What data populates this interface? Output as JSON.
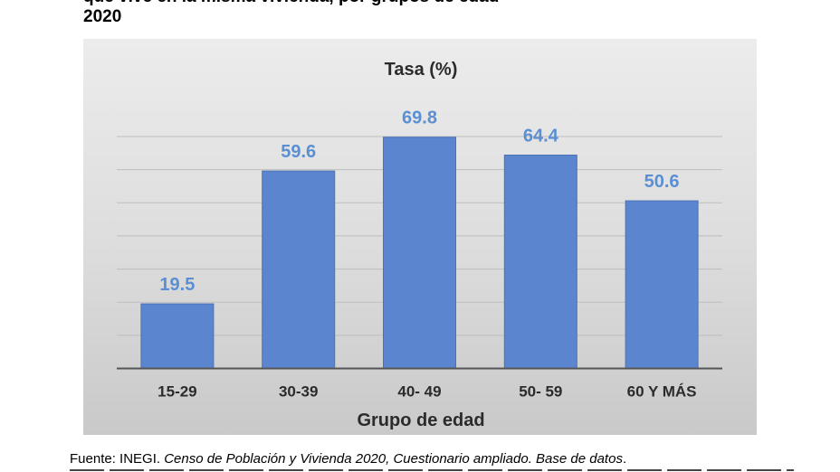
{
  "heading": {
    "line1": "que vive en la misma vivienda, por grupos de edad",
    "line2": "2020"
  },
  "chart_data": {
    "type": "bar",
    "title": "Tasa (%)",
    "xlabel": "Grupo de edad",
    "ylabel": "",
    "categories": [
      "15-29",
      "30-39",
      "40- 49",
      "50- 59",
      "60 Y MÁS"
    ],
    "values": [
      19.5,
      59.6,
      69.8,
      64.4,
      50.6
    ],
    "value_labels": [
      "19.5",
      "59.6",
      "69.8",
      "64.4",
      "50.6"
    ],
    "ylim": [
      0,
      70
    ],
    "grid": true,
    "colors": {
      "bar": "#5b86cf",
      "bar_edge": "#4a72b8",
      "data_label": "#5b8fd3",
      "grid": "#bdbdbd",
      "axis": "#555555"
    }
  },
  "source": {
    "prefix": "Fuente: INEGI. ",
    "italic": "Censo de Población y Vivienda 2020, Cuestionario ampliado. Base de datos",
    "suffix": "."
  }
}
